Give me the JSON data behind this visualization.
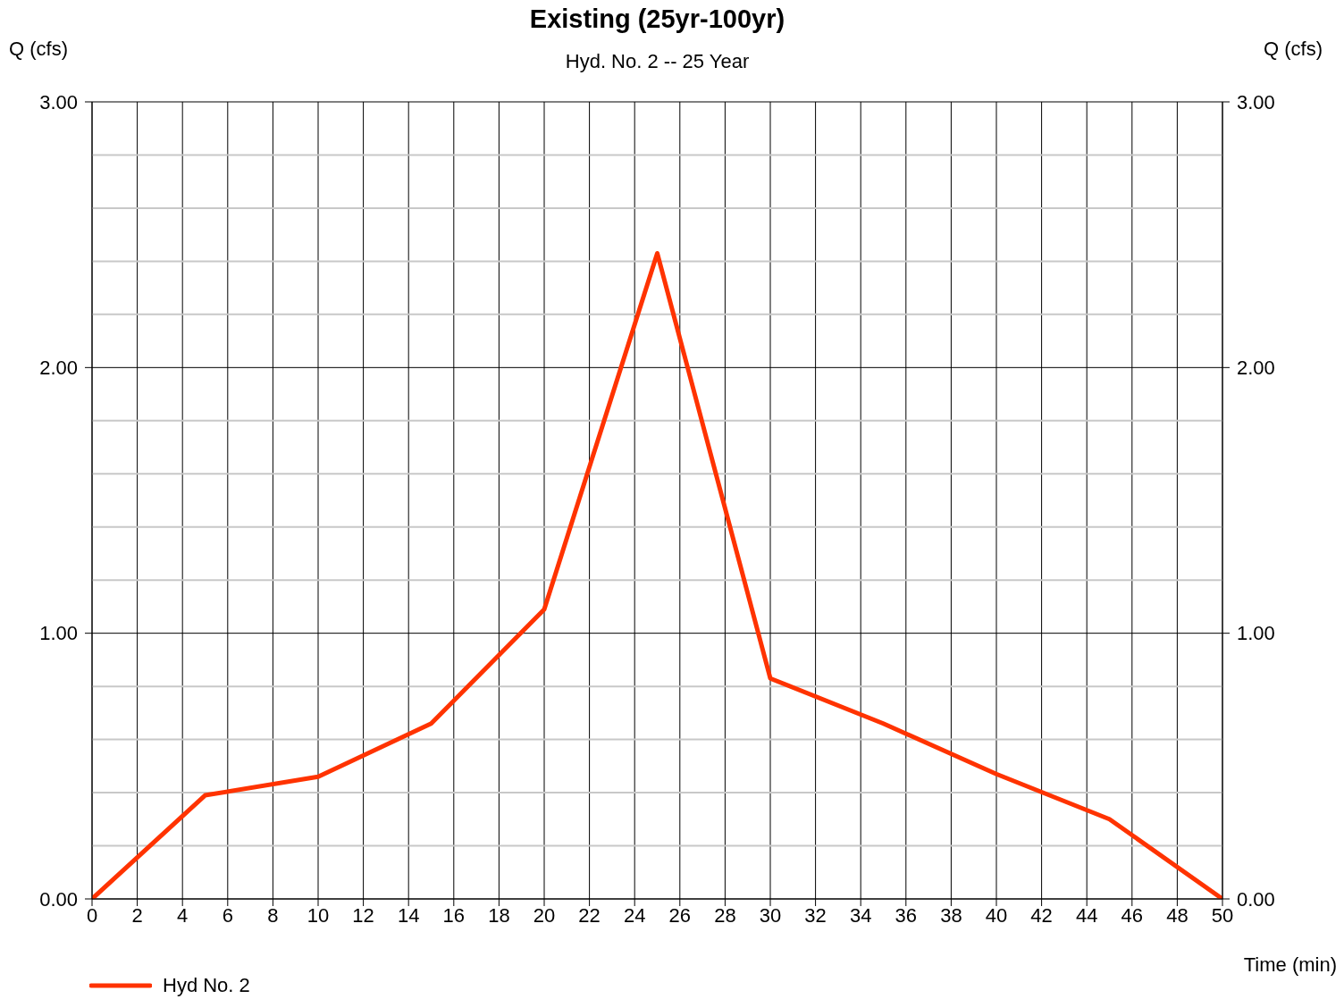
{
  "chart_data": {
    "type": "line",
    "title": "Existing (25yr-100yr)",
    "subtitle": "Hyd. No. 2 -- 25 Year",
    "xlabel": "Time (min)",
    "ylabel": "Q (cfs)",
    "y2label": "Q (cfs)",
    "x": [
      0,
      5,
      10,
      15,
      20,
      25,
      30,
      35,
      40,
      45,
      50
    ],
    "series": [
      {
        "name": "Hyd No. 2",
        "color": "#ff3300",
        "values": [
          0,
          0.39,
          0.46,
          0.66,
          1.09,
          2.43,
          0.83,
          0.66,
          0.47,
          0.3,
          0
        ]
      }
    ],
    "xlim": [
      0,
      50
    ],
    "xticks": [
      0,
      2,
      4,
      6,
      8,
      10,
      12,
      14,
      16,
      18,
      20,
      22,
      24,
      26,
      28,
      30,
      32,
      34,
      36,
      38,
      40,
      42,
      44,
      46,
      48,
      50
    ],
    "ylim": [
      0,
      3
    ],
    "yticks": [
      {
        "value": 0,
        "label": "0.00"
      },
      {
        "value": 0.2,
        "label": null
      },
      {
        "value": 0.4,
        "label": null
      },
      {
        "value": 0.6,
        "label": null
      },
      {
        "value": 0.8,
        "label": null
      },
      {
        "value": 1,
        "label": "1.00"
      },
      {
        "value": 1.2,
        "label": null
      },
      {
        "value": 1.4,
        "label": null
      },
      {
        "value": 1.6,
        "label": null
      },
      {
        "value": 1.8,
        "label": null
      },
      {
        "value": 2,
        "label": "2.00"
      },
      {
        "value": 2.2,
        "label": null
      },
      {
        "value": 2.4,
        "label": null
      },
      {
        "value": 2.6,
        "label": null
      },
      {
        "value": 2.8,
        "label": null
      },
      {
        "value": 3,
        "label": "3.00"
      }
    ],
    "y2lim": [
      0,
      3
    ],
    "y2ticks": [
      {
        "value": 0,
        "label": "0.00"
      },
      {
        "value": 1,
        "label": "1.00"
      },
      {
        "value": 2,
        "label": "2.00"
      },
      {
        "value": 3,
        "label": "3.00"
      }
    ],
    "grid": true,
    "legend": "bottom left",
    "marker": "none",
    "line_style": "solid"
  }
}
